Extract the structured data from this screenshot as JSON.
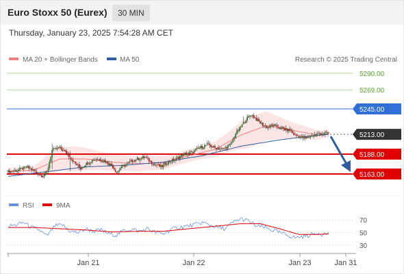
{
  "header": {
    "instrument": "Euro Stoxx 50 (Eurex)",
    "timeframe": "30 MIN",
    "datetime": "Thursday, January 23, 2025 7:54:28 AM CET"
  },
  "legend": {
    "item1": "MA 20 + Bollinger Bands",
    "item2": "MA 50",
    "credit": "Research © 2025 Trading Central"
  },
  "rsi_legend": {
    "item1": "RSI",
    "item2": "9MA"
  },
  "colors": {
    "resistance_green": "#5aa02c",
    "pivot_blue": "#2f6fd6",
    "support_red": "#e00000",
    "current_dark": "#333333",
    "ma20": "#f08080",
    "ma50": "#2e5c9e",
    "arrow": "#2e5c9e",
    "candle_up": "#2e7d32",
    "candle_down": "#b71c1c",
    "rsi": "#6b8fe0",
    "rsi_ma": "#e00000"
  },
  "chart_data": [
    {
      "type": "candlestick",
      "ylim": [
        5143,
        5302
      ],
      "levels": [
        {
          "value": 5290.0,
          "label": "5290.00",
          "kind": "resistance"
        },
        {
          "value": 5269.0,
          "label": "5269.00",
          "kind": "resistance"
        },
        {
          "value": 5245.0,
          "label": "5245.00",
          "kind": "pivot"
        },
        {
          "value": 5213.0,
          "label": "5213.00",
          "kind": "current"
        },
        {
          "value": 5188.0,
          "label": "5188.00",
          "kind": "support"
        },
        {
          "value": 5163.0,
          "label": "5163.00",
          "kind": "support"
        }
      ],
      "x_ticks": [
        "Jan 21",
        "Jan 22",
        "Jan 23",
        "Jan 31"
      ],
      "price_anchors": [
        [
          0,
          5166
        ],
        [
          8,
          5168
        ],
        [
          14,
          5172
        ],
        [
          20,
          5167
        ],
        [
          26,
          5161
        ],
        [
          30,
          5165
        ],
        [
          34,
          5193
        ],
        [
          40,
          5196
        ],
        [
          46,
          5188
        ],
        [
          52,
          5176
        ],
        [
          56,
          5170
        ],
        [
          62,
          5178
        ],
        [
          68,
          5182
        ],
        [
          74,
          5180
        ],
        [
          80,
          5174
        ],
        [
          84,
          5165
        ],
        [
          88,
          5172
        ],
        [
          94,
          5178
        ],
        [
          100,
          5182
        ],
        [
          106,
          5184
        ],
        [
          112,
          5176
        ],
        [
          118,
          5172
        ],
        [
          124,
          5178
        ],
        [
          130,
          5182
        ],
        [
          136,
          5188
        ],
        [
          142,
          5190
        ],
        [
          148,
          5196
        ],
        [
          154,
          5200
        ],
        [
          160,
          5196
        ],
        [
          166,
          5194
        ],
        [
          172,
          5200
        ],
        [
          176,
          5214
        ],
        [
          180,
          5222
        ],
        [
          184,
          5232
        ],
        [
          188,
          5238
        ],
        [
          192,
          5232
        ],
        [
          196,
          5226
        ],
        [
          200,
          5222
        ],
        [
          206,
          5224
        ],
        [
          212,
          5220
        ],
        [
          218,
          5218
        ],
        [
          222,
          5212
        ],
        [
          226,
          5210
        ],
        [
          230,
          5208
        ],
        [
          236,
          5212
        ],
        [
          242,
          5214
        ],
        [
          248,
          5215
        ]
      ],
      "ma20_anchors": [
        [
          0,
          5166
        ],
        [
          20,
          5168
        ],
        [
          40,
          5182
        ],
        [
          60,
          5182
        ],
        [
          80,
          5178
        ],
        [
          100,
          5176
        ],
        [
          120,
          5177
        ],
        [
          140,
          5186
        ],
        [
          160,
          5194
        ],
        [
          180,
          5212
        ],
        [
          200,
          5224
        ],
        [
          220,
          5218
        ],
        [
          240,
          5212
        ],
        [
          248,
          5214
        ]
      ],
      "ma50_anchors": [
        [
          0,
          5160
        ],
        [
          30,
          5166
        ],
        [
          60,
          5172
        ],
        [
          90,
          5174
        ],
        [
          120,
          5178
        ],
        [
          150,
          5186
        ],
        [
          180,
          5198
        ],
        [
          210,
          5206
        ],
        [
          230,
          5210
        ],
        [
          248,
          5213
        ]
      ],
      "bb_width_anchors": [
        [
          0,
          4
        ],
        [
          20,
          5
        ],
        [
          34,
          14
        ],
        [
          50,
          16
        ],
        [
          70,
          12
        ],
        [
          90,
          10
        ],
        [
          110,
          9
        ],
        [
          130,
          8
        ],
        [
          150,
          8
        ],
        [
          170,
          12
        ],
        [
          185,
          20
        ],
        [
          200,
          18
        ],
        [
          220,
          10
        ],
        [
          240,
          6
        ],
        [
          248,
          5
        ]
      ],
      "forecast": {
        "from": 5213.0,
        "to": 5163.0
      }
    },
    {
      "type": "line",
      "name": "RSI panel",
      "ylim": [
        25,
        76
      ],
      "y_ticks": [
        70,
        50,
        30
      ],
      "rsi_anchors": [
        [
          0,
          60
        ],
        [
          6,
          62
        ],
        [
          12,
          66
        ],
        [
          18,
          58
        ],
        [
          24,
          54
        ],
        [
          30,
          44
        ],
        [
          36,
          60
        ],
        [
          42,
          62
        ],
        [
          48,
          52
        ],
        [
          54,
          50
        ],
        [
          60,
          56
        ],
        [
          66,
          52
        ],
        [
          72,
          54
        ],
        [
          78,
          48
        ],
        [
          84,
          46
        ],
        [
          90,
          54
        ],
        [
          96,
          55
        ],
        [
          102,
          52
        ],
        [
          108,
          56
        ],
        [
          114,
          50
        ],
        [
          120,
          48
        ],
        [
          126,
          55
        ],
        [
          132,
          58
        ],
        [
          138,
          60
        ],
        [
          144,
          62
        ],
        [
          150,
          66
        ],
        [
          156,
          62
        ],
        [
          162,
          58
        ],
        [
          168,
          56
        ],
        [
          174,
          66
        ],
        [
          180,
          72
        ],
        [
          186,
          68
        ],
        [
          192,
          60
        ],
        [
          198,
          58
        ],
        [
          204,
          54
        ],
        [
          210,
          50
        ],
        [
          216,
          46
        ],
        [
          222,
          42
        ],
        [
          228,
          44
        ],
        [
          234,
          46
        ],
        [
          240,
          50
        ],
        [
          244,
          47
        ],
        [
          248,
          49
        ]
      ],
      "ma_anchors": [
        [
          0,
          58
        ],
        [
          20,
          58
        ],
        [
          40,
          56
        ],
        [
          60,
          54
        ],
        [
          80,
          51
        ],
        [
          100,
          52
        ],
        [
          120,
          52
        ],
        [
          140,
          56
        ],
        [
          160,
          60
        ],
        [
          180,
          64
        ],
        [
          195,
          64
        ],
        [
          210,
          56
        ],
        [
          225,
          47
        ],
        [
          240,
          47
        ],
        [
          248,
          48
        ]
      ]
    }
  ]
}
